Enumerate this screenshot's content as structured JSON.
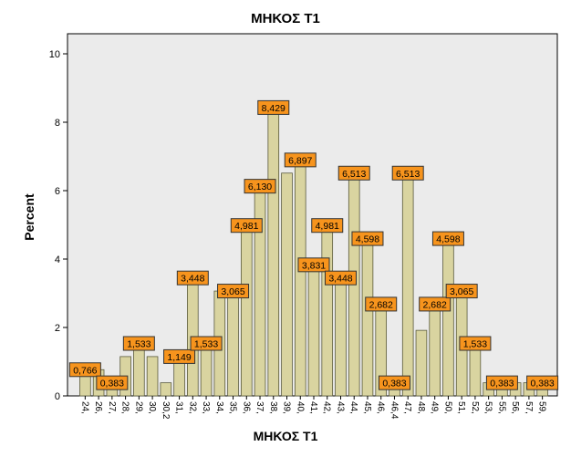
{
  "chart_data": {
    "type": "bar",
    "title": "ΜΗΚΟΣ Τ1",
    "xlabel": "ΜΗΚΟΣ Τ1",
    "ylabel": "Percent",
    "ylim": [
      0,
      10
    ],
    "yticks": [
      "0",
      "2",
      "4",
      "6",
      "8",
      "10"
    ],
    "grid": false,
    "colors": {
      "plot_background": "#ebebeb",
      "bar_fill": "#d9d4a0",
      "bar_stroke": "#5a5a3c",
      "label_fill": "#f7941d",
      "label_stroke": "#333333"
    },
    "categories": [
      "24,",
      "26,",
      "27,",
      "28,",
      "29,",
      "30,",
      "30,2",
      "31,",
      "32,",
      "33,",
      "34,",
      "35,",
      "36,",
      "37,",
      "38,",
      "39,",
      "40,",
      "41,",
      "42,",
      "43,",
      "44,",
      "45,",
      "46,",
      "46,4",
      "47,",
      "48,",
      "49,",
      "50,",
      "51,",
      "52,",
      "53,",
      "55,",
      "56,",
      "57,",
      "59,"
    ],
    "values": [
      0.766,
      0.766,
      0.383,
      1.149,
      1.533,
      1.149,
      0.383,
      1.149,
      3.448,
      1.533,
      3.065,
      3.065,
      4.981,
      6.13,
      8.429,
      6.513,
      6.897,
      3.831,
      4.981,
      3.448,
      6.513,
      4.598,
      2.682,
      0.383,
      6.513,
      1.916,
      2.682,
      4.598,
      3.065,
      1.533,
      0.383,
      0.383,
      0.383,
      0.383,
      0.383
    ],
    "data_labels": [
      {
        "bar": 0,
        "text": "0,766"
      },
      {
        "bar": 2,
        "text": "0,383"
      },
      {
        "bar": 4,
        "text": "1,533"
      },
      {
        "bar": 7,
        "text": "1,149"
      },
      {
        "bar": 8,
        "text": "3,448"
      },
      {
        "bar": 9,
        "text": "1,533"
      },
      {
        "bar": 11,
        "text": "3,065"
      },
      {
        "bar": 12,
        "text": "4,981"
      },
      {
        "bar": 13,
        "text": "6,130"
      },
      {
        "bar": 14,
        "text": "8,429"
      },
      {
        "bar": 16,
        "text": "6,897"
      },
      {
        "bar": 17,
        "text": "3,831"
      },
      {
        "bar": 18,
        "text": "4,981"
      },
      {
        "bar": 19,
        "text": "3,448"
      },
      {
        "bar": 20,
        "text": "6,513"
      },
      {
        "bar": 21,
        "text": "4,598"
      },
      {
        "bar": 22,
        "text": "2,682"
      },
      {
        "bar": 23,
        "text": "0,383"
      },
      {
        "bar": 24,
        "text": "6,513"
      },
      {
        "bar": 26,
        "text": "2,682"
      },
      {
        "bar": 27,
        "text": "4,598"
      },
      {
        "bar": 28,
        "text": "3,065"
      },
      {
        "bar": 29,
        "text": "1,533"
      },
      {
        "bar": 31,
        "text": "0,383"
      },
      {
        "bar": 34,
        "text": "0,383"
      }
    ]
  }
}
